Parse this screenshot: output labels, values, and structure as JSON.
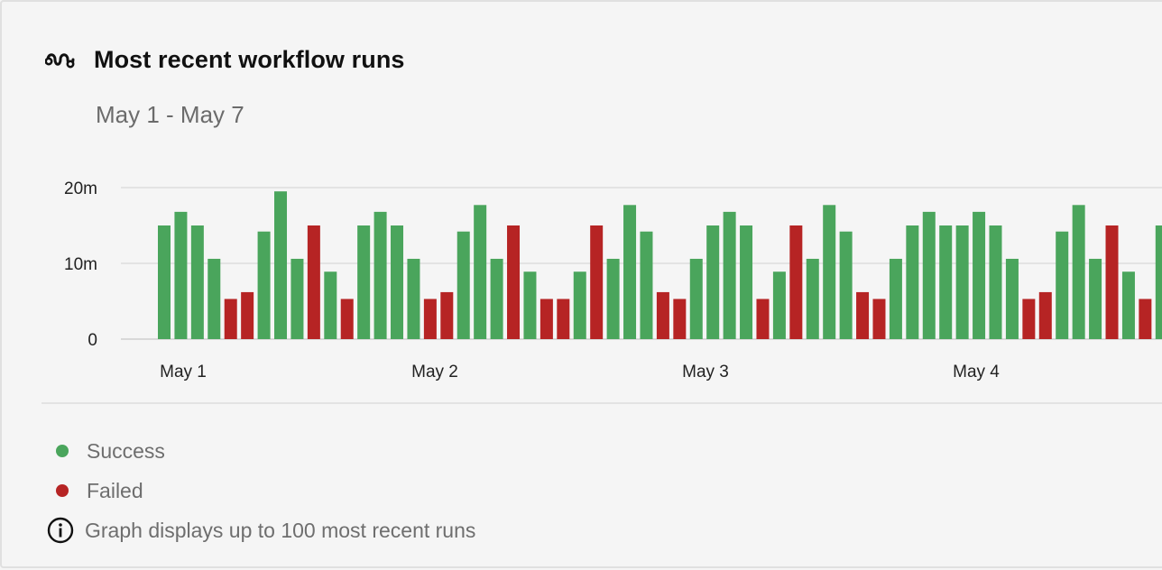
{
  "header": {
    "title": "Most recent workflow runs",
    "subtitle": "May 1 - May 7",
    "icon": "workflow-icon"
  },
  "legend": {
    "success_label": "Success",
    "failed_label": "Failed",
    "info_text": "Graph displays up to 100 most recent runs",
    "info_icon": "info-icon"
  },
  "colors": {
    "success": "#4aa55c",
    "failed": "#b62424",
    "grid": "#dddddd"
  },
  "chart_data": {
    "type": "bar",
    "title": "",
    "xlabel": "",
    "ylabel": "",
    "ylim": [
      0,
      20
    ],
    "yticks": [
      0,
      10,
      20
    ],
    "ytick_labels": [
      "0",
      "10m",
      "20m"
    ],
    "xtick_labels": [
      "May 1",
      "May 2",
      "May 3",
      "May 4"
    ],
    "grid": true,
    "series_names": [
      "Success",
      "Failed"
    ],
    "runs": [
      {
        "status": "success",
        "minutes": 15
      },
      {
        "status": "success",
        "minutes": 16.8
      },
      {
        "status": "success",
        "minutes": 15
      },
      {
        "status": "success",
        "minutes": 10.6
      },
      {
        "status": "failed",
        "minutes": 5.3
      },
      {
        "status": "failed",
        "minutes": 6.2
      },
      {
        "status": "success",
        "minutes": 14.2
      },
      {
        "status": "success",
        "minutes": 19.5
      },
      {
        "status": "success",
        "minutes": 10.6
      },
      {
        "status": "failed",
        "minutes": 15
      },
      {
        "status": "success",
        "minutes": 8.9
      },
      {
        "status": "failed",
        "minutes": 5.3
      },
      {
        "status": "success",
        "minutes": 15
      },
      {
        "status": "success",
        "minutes": 16.8
      },
      {
        "status": "success",
        "minutes": 15
      },
      {
        "status": "success",
        "minutes": 10.6
      },
      {
        "status": "failed",
        "minutes": 5.3
      },
      {
        "status": "failed",
        "minutes": 6.2
      },
      {
        "status": "success",
        "minutes": 14.2
      },
      {
        "status": "success",
        "minutes": 17.7
      },
      {
        "status": "success",
        "minutes": 10.6
      },
      {
        "status": "failed",
        "minutes": 15
      },
      {
        "status": "success",
        "minutes": 8.9
      },
      {
        "status": "failed",
        "minutes": 5.3
      },
      {
        "status": "failed",
        "minutes": 5.3
      },
      {
        "status": "success",
        "minutes": 8.9
      },
      {
        "status": "failed",
        "minutes": 15
      },
      {
        "status": "success",
        "minutes": 10.6
      },
      {
        "status": "success",
        "minutes": 17.7
      },
      {
        "status": "success",
        "minutes": 14.2
      },
      {
        "status": "failed",
        "minutes": 6.2
      },
      {
        "status": "failed",
        "minutes": 5.3
      },
      {
        "status": "success",
        "minutes": 10.6
      },
      {
        "status": "success",
        "minutes": 15
      },
      {
        "status": "success",
        "minutes": 16.8
      },
      {
        "status": "success",
        "minutes": 15
      },
      {
        "status": "failed",
        "minutes": 5.3
      },
      {
        "status": "success",
        "minutes": 8.9
      },
      {
        "status": "failed",
        "minutes": 15
      },
      {
        "status": "success",
        "minutes": 10.6
      },
      {
        "status": "success",
        "minutes": 17.7
      },
      {
        "status": "success",
        "minutes": 14.2
      },
      {
        "status": "failed",
        "minutes": 6.2
      },
      {
        "status": "failed",
        "minutes": 5.3
      },
      {
        "status": "success",
        "minutes": 10.6
      },
      {
        "status": "success",
        "minutes": 15
      },
      {
        "status": "success",
        "minutes": 16.8
      },
      {
        "status": "success",
        "minutes": 15
      },
      {
        "status": "success",
        "minutes": 15
      },
      {
        "status": "success",
        "minutes": 16.8
      },
      {
        "status": "success",
        "minutes": 15
      },
      {
        "status": "success",
        "minutes": 10.6
      },
      {
        "status": "failed",
        "minutes": 5.3
      },
      {
        "status": "failed",
        "minutes": 6.2
      },
      {
        "status": "success",
        "minutes": 14.2
      },
      {
        "status": "success",
        "minutes": 17.7
      },
      {
        "status": "success",
        "minutes": 10.6
      },
      {
        "status": "failed",
        "minutes": 15
      },
      {
        "status": "success",
        "minutes": 8.9
      },
      {
        "status": "failed",
        "minutes": 5.3
      },
      {
        "status": "success",
        "minutes": 15
      }
    ]
  }
}
